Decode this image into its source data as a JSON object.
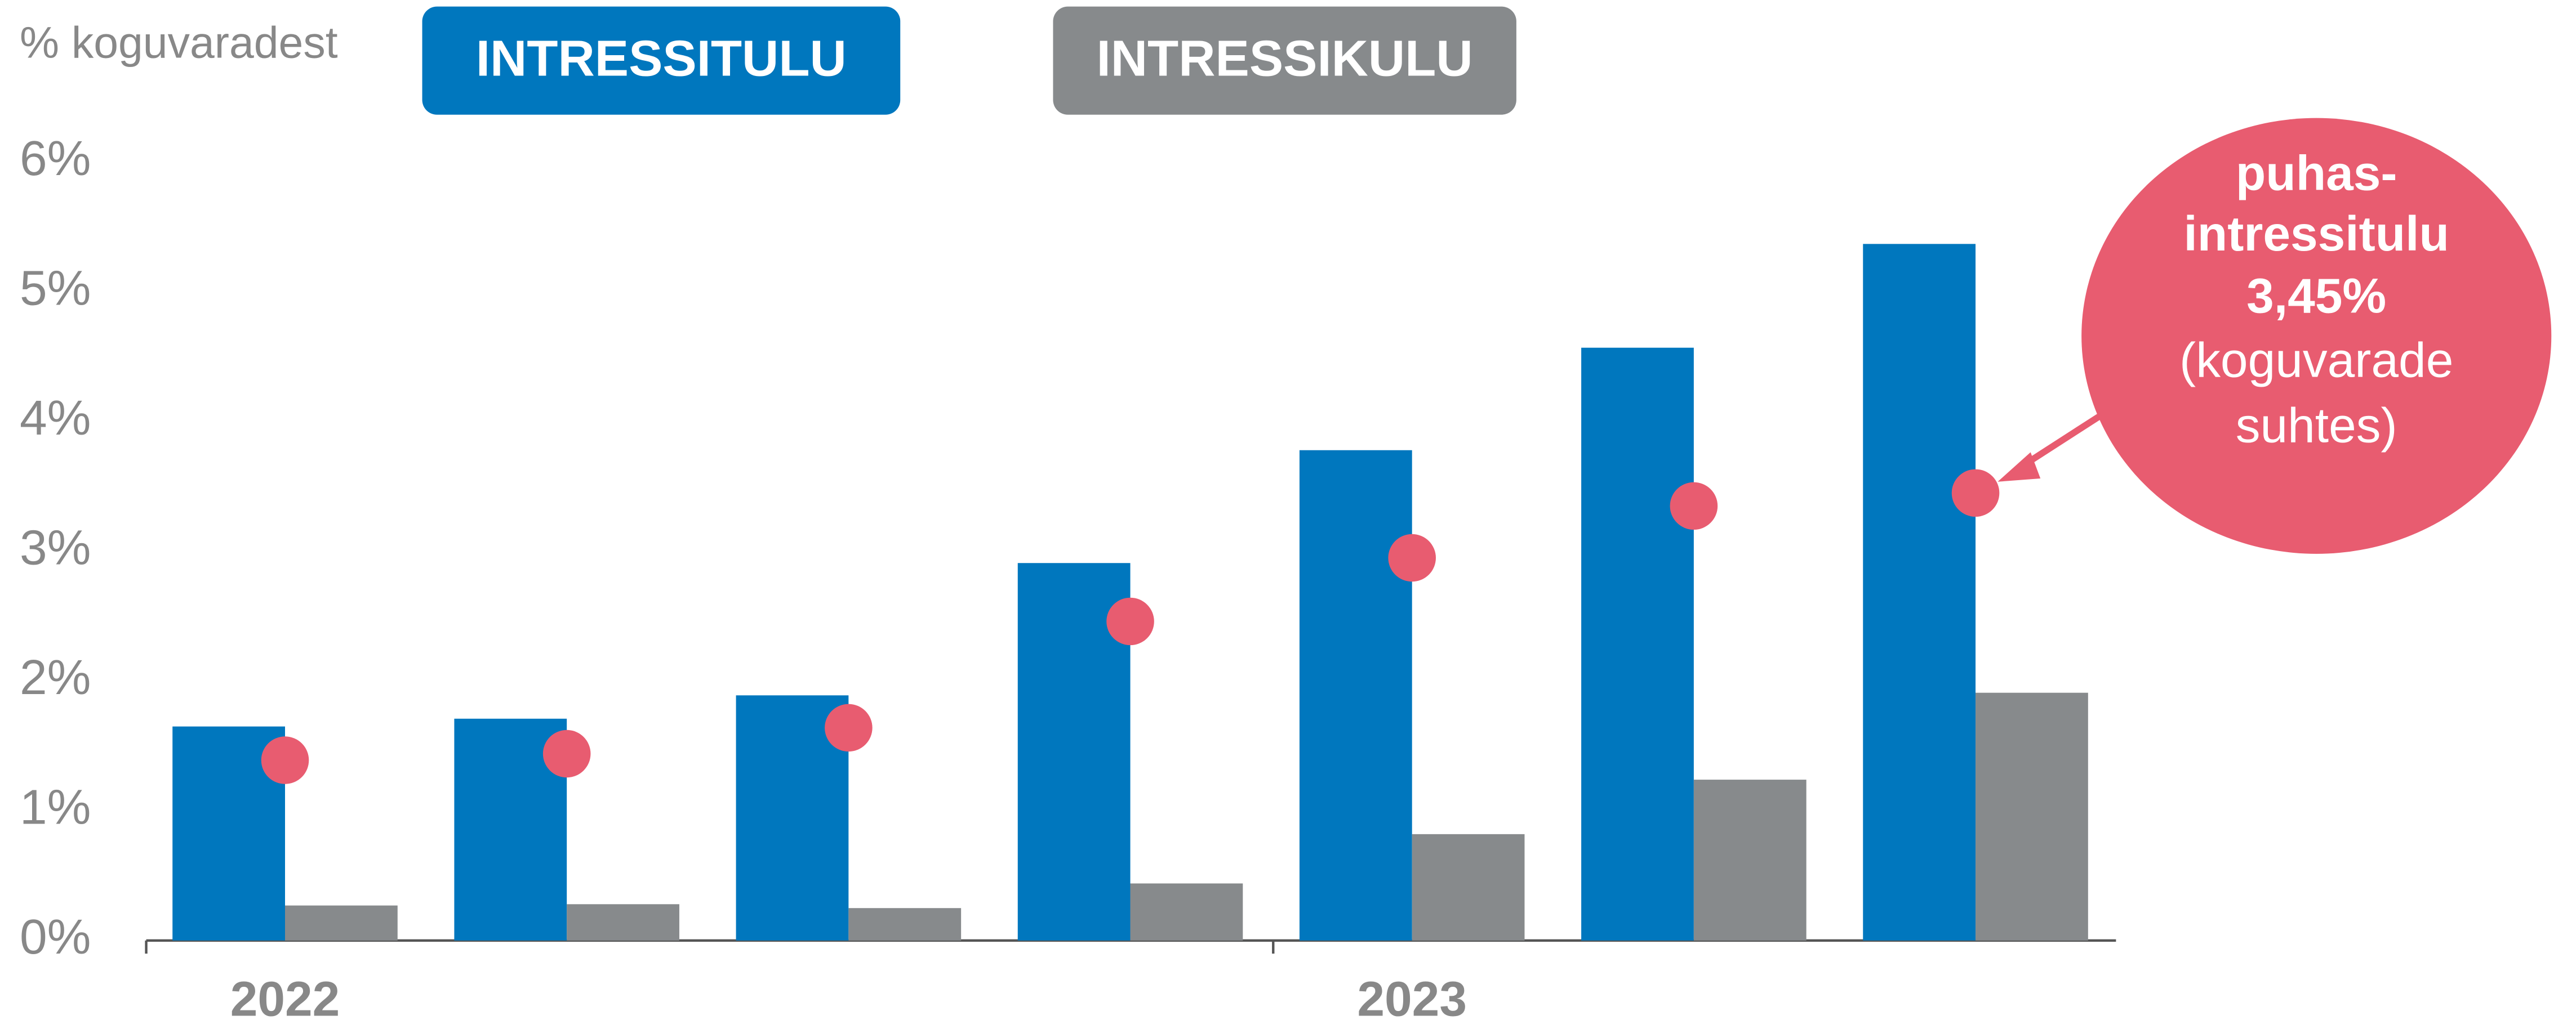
{
  "chart_data": {
    "type": "bar",
    "ylabel": "% koguvaradest",
    "categories": [
      "2022",
      null,
      null,
      null,
      "2023",
      null,
      null
    ],
    "series": [
      {
        "name": "INTRESSITULU",
        "color": "#0077be",
        "values": [
          1.65,
          1.71,
          1.89,
          2.91,
          3.78,
          4.57,
          5.37
        ]
      },
      {
        "name": "INTRESSIKULU",
        "color": "#878a8c",
        "values": [
          0.27,
          0.28,
          0.25,
          0.44,
          0.82,
          1.24,
          1.91
        ]
      },
      {
        "type": "scatter",
        "color": "#e85c70",
        "values": [
          1.39,
          1.44,
          1.64,
          2.46,
          2.95,
          3.35,
          3.45
        ]
      }
    ],
    "annotation": [
      "puhas-",
      "intressitulu",
      "3,45%",
      "(koguvarade",
      "suhtes)"
    ],
    "ylim": [
      0,
      6
    ],
    "yticks": [
      {
        "value": 0,
        "label": "0%"
      },
      {
        "value": 1,
        "label": "1%"
      },
      {
        "value": 2,
        "label": "2%"
      },
      {
        "value": 3,
        "label": "3%"
      },
      {
        "value": 4,
        "label": "4%"
      },
      {
        "value": 5,
        "label": "5%"
      },
      {
        "value": 6,
        "label": "6%"
      }
    ],
    "grid": false
  }
}
